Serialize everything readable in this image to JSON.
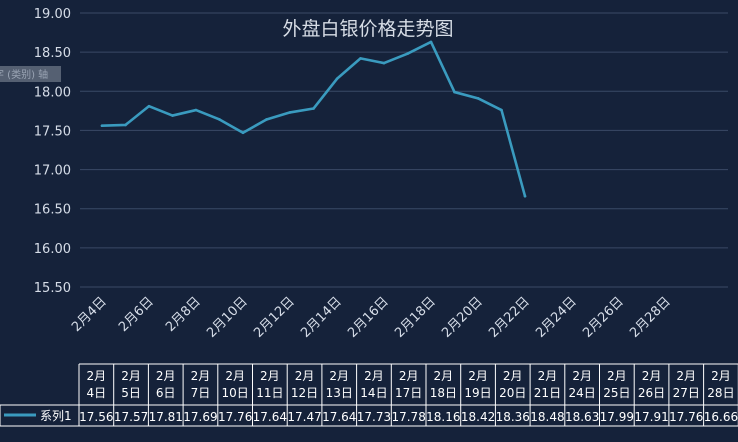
{
  "chart_data": {
    "type": "line",
    "title": "外盘白银价格走势图",
    "axis_tag": "字 (类别) 轴",
    "categories": [
      "2月4日",
      "2月5日",
      "2月6日",
      "2月7日",
      "2月10日",
      "2月11日",
      "2月12日",
      "2月13日",
      "2月14日",
      "2月17日",
      "2月18日",
      "2月19日",
      "2月20日",
      "2月21日",
      "2月24日",
      "2月25日",
      "2月26日",
      "2月27日",
      "2月28日"
    ],
    "x_tick_labels": [
      "2月4日",
      "2月6日",
      "2月8日",
      "2月10日",
      "2月12日",
      "2月14日",
      "2月16日",
      "2月18日",
      "2月20日",
      "2月22日",
      "2月24日",
      "2月26日",
      "2月28日"
    ],
    "series": [
      {
        "name": "系列1",
        "color": "#3a9bbf",
        "values": [
          17.56,
          17.57,
          17.81,
          17.69,
          17.76,
          17.64,
          17.47,
          17.64,
          17.73,
          17.78,
          18.16,
          18.42,
          18.36,
          18.48,
          18.63,
          17.99,
          17.91,
          17.76,
          16.66
        ],
        "value_labels": [
          "17.56",
          "17.57",
          "17.81",
          "17.69",
          "17.76",
          "17.64",
          "17.47",
          "17.64",
          "17.73",
          "17.78",
          "18.16",
          "18.42",
          "18.36",
          "18.48",
          "18.63",
          "17.99",
          "17.91",
          "17.76",
          "16.66"
        ]
      }
    ],
    "y_tick_labels": [
      "19.00",
      "18.50",
      "18.00",
      "17.50",
      "17.00",
      "16.50",
      "16.00",
      "15.50"
    ],
    "ylim": [
      15.5,
      19.0
    ],
    "grid": true,
    "data_table": true
  }
}
